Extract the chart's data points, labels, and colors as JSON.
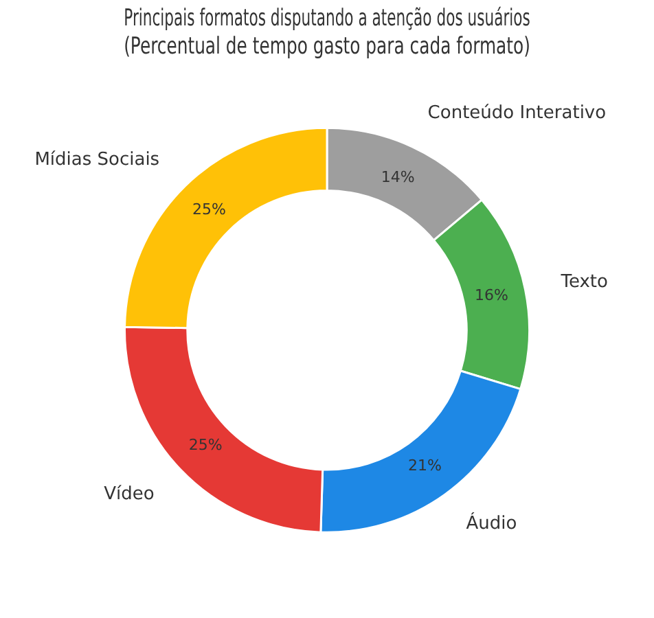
{
  "chart_data": {
    "type": "donut",
    "title": [
      "Principais formatos disputando a atenção dos usuários",
      "(Percentual de tempo gasto para cada formato)"
    ],
    "categories": [
      "Conteúdo Interativo",
      "Texto",
      "Áudio",
      "Vídeo",
      "Mídias Sociais"
    ],
    "values": [
      14,
      16,
      21,
      25,
      25
    ],
    "colors": [
      "#9e9e9e",
      "#4caf50",
      "#1e88e5",
      "#e53935",
      "#ffc107"
    ],
    "value_labels": [
      "14%",
      "16%",
      "21%",
      "25%",
      "25%"
    ],
    "legend": false
  }
}
